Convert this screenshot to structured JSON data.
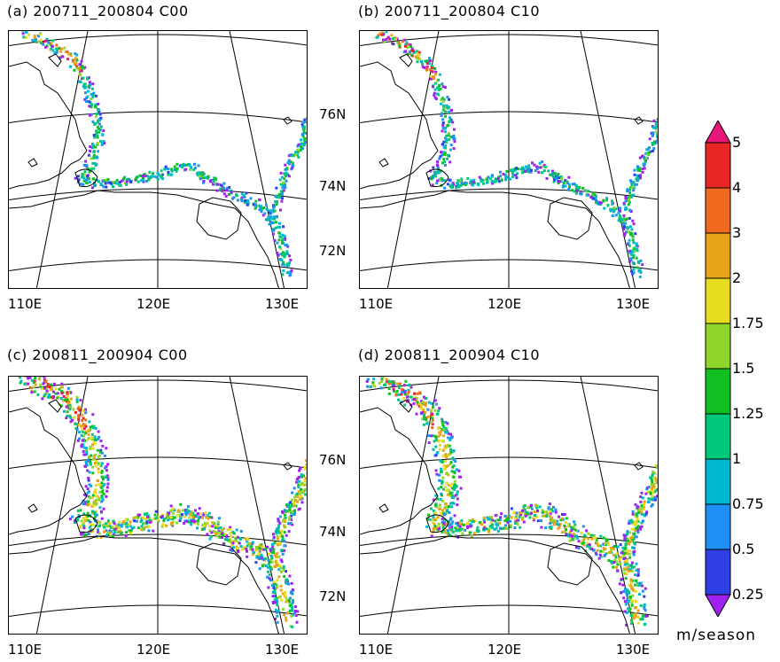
{
  "panels": [
    {
      "title": "(a)  200711_200804  C00",
      "variant": "year1"
    },
    {
      "title": "(b)  200711_200804  C10",
      "variant": "year1"
    },
    {
      "title": "(c)  200811_200904  C00",
      "variant": "year2"
    },
    {
      "title": "(d)  200811_200904  C10",
      "variant": "year2"
    }
  ],
  "lon_labels": [
    "110E",
    "120E",
    "130E"
  ],
  "lat_labels": [
    "76N",
    "74N",
    "72N"
  ],
  "colorbar": {
    "levels": [
      "0.25",
      "0.5",
      "0.75",
      "1",
      "1.25",
      "1.5",
      "1.75",
      "2",
      "3",
      "4",
      "5"
    ],
    "colors": [
      "#a020f0",
      "#2f3fe6",
      "#1e8ff5",
      "#00b8d0",
      "#00c87a",
      "#10c020",
      "#8fd62a",
      "#e8dc20",
      "#e8a418",
      "#ef6a1e",
      "#e82626",
      "#e8167a"
    ],
    "unit": "m/season"
  }
}
